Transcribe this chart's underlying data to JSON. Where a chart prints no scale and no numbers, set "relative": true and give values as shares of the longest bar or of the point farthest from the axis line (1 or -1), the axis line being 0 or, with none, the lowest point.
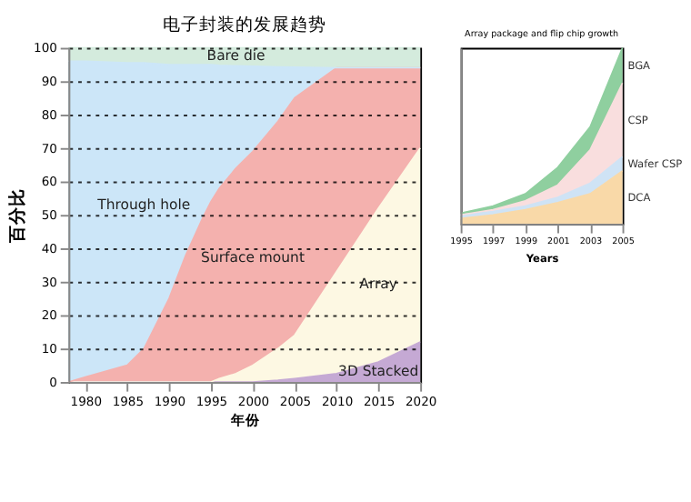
{
  "chart_data": [
    {
      "type": "area",
      "stacked": true,
      "title": "电子封装的发展趋势",
      "xlabel": "年份",
      "ylabel": "百分比",
      "x": [
        1978,
        1980,
        1985,
        1987,
        1990,
        1992,
        1994,
        1995,
        1996,
        1998,
        2000,
        2003,
        2005,
        2010,
        2015,
        2020
      ],
      "xlim": [
        1978,
        2020
      ],
      "xticks": [
        1980,
        1985,
        1990,
        1995,
        2000,
        2005,
        2010,
        2015,
        2020
      ],
      "ylim": [
        0,
        100
      ],
      "yticks": [
        0,
        10,
        20,
        30,
        40,
        50,
        60,
        70,
        80,
        90,
        100
      ],
      "grid": "y",
      "legend": false,
      "series": [
        {
          "name": "3D Stacked",
          "color": "#c5a9d4",
          "values": [
            0,
            0,
            0,
            0,
            0,
            0,
            0,
            0,
            0,
            0,
            0,
            0.5,
            1,
            2.5,
            6,
            12
          ]
        },
        {
          "name": "Array",
          "color": "#fdf8e3",
          "values": [
            0,
            0,
            0,
            0,
            0,
            0,
            0,
            0,
            1,
            2.5,
            5,
            9.5,
            13,
            30.5,
            46,
            58
          ]
        },
        {
          "name": "Surface mount",
          "color": "#f4b1ae",
          "values": [
            0,
            1.5,
            5,
            10,
            25,
            38,
            49,
            54,
            57,
            61.5,
            64,
            68,
            71,
            61,
            42,
            24
          ]
        },
        {
          "name": "Through hole",
          "color": "#cce6f8",
          "values": [
            96,
            94.5,
            90.5,
            85.5,
            70,
            57,
            46,
            41,
            36.8,
            30.6,
            25.5,
            16.3,
            9.2,
            0,
            0,
            0
          ]
        },
        {
          "name": "Bare die",
          "color": "#d4ebdd",
          "values": [
            4,
            4,
            4.5,
            4.5,
            5,
            5,
            5,
            5,
            5.2,
            5.4,
            5.5,
            5.7,
            5.8,
            6,
            6,
            6
          ]
        }
      ]
    },
    {
      "type": "area",
      "stacked": true,
      "relative": true,
      "title": "Array package and flip chip growth",
      "xlabel": "Years",
      "x": [
        1995,
        1997,
        1999,
        2001,
        2003,
        2005
      ],
      "xlim": [
        1995,
        2005
      ],
      "xticks": [
        1995,
        1997,
        1999,
        2001,
        2003,
        2005
      ],
      "tick_labels": "x",
      "legend": false,
      "grid": "y",
      "series": [
        {
          "name": "DCA",
          "color": "#f9d9a8",
          "values": [
            0.03,
            0.05,
            0.08,
            0.12,
            0.17,
            0.3
          ]
        },
        {
          "name": "Wafer CSP",
          "color": "#cfe3f5",
          "values": [
            0.02,
            0.02,
            0.02,
            0.03,
            0.06,
            0.08
          ]
        },
        {
          "name": "CSP",
          "color": "#f9dede",
          "values": [
            0,
            0.01,
            0.03,
            0.07,
            0.19,
            0.42
          ]
        },
        {
          "name": "BGA",
          "color": "#8fcf9f",
          "values": [
            0.01,
            0.02,
            0.04,
            0.1,
            0.13,
            0.2
          ]
        }
      ]
    }
  ]
}
